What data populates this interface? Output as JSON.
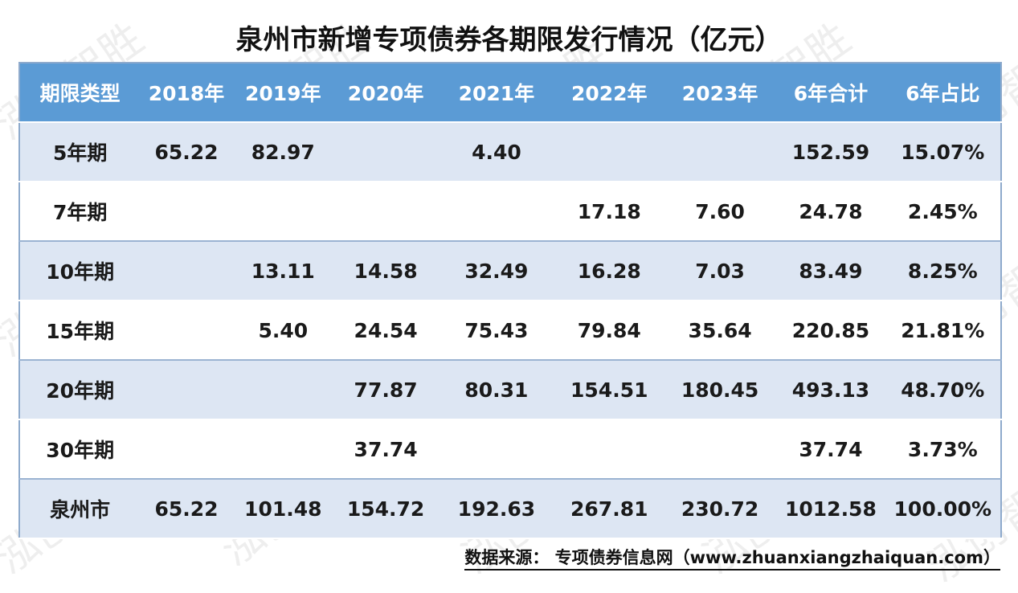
{
  "title": "泉州市新增专项债券各期限发行情况（亿元）",
  "watermark": "泓创智胜",
  "table": {
    "header": [
      "期限类型",
      "2018年",
      "2019年",
      "2020年",
      "2021年",
      "2022年",
      "2023年",
      "6年合计",
      "6年占比"
    ],
    "rows": [
      [
        "5年期",
        "65.22",
        "82.97",
        null,
        "4.40",
        null,
        null,
        "152.59",
        "15.07%"
      ],
      [
        "7年期",
        null,
        null,
        null,
        null,
        "17.18",
        "7.60",
        "24.78",
        "2.45%"
      ],
      [
        "10年期",
        null,
        "13.11",
        "14.58",
        "32.49",
        "16.28",
        "7.03",
        "83.49",
        "8.25%"
      ],
      [
        "15年期",
        null,
        "5.40",
        "24.54",
        "75.43",
        "79.84",
        "35.64",
        "220.85",
        "21.81%"
      ],
      [
        "20年期",
        null,
        null,
        "77.87",
        "80.31",
        "154.51",
        "180.45",
        "493.13",
        "48.70%"
      ],
      [
        "30年期",
        null,
        null,
        "37.74",
        null,
        null,
        null,
        "37.74",
        "3.73%"
      ],
      [
        "泉州市",
        "65.22",
        "101.48",
        "154.72",
        "192.63",
        "267.81",
        "230.72",
        "1012.58",
        "100.00%"
      ]
    ]
  },
  "source": "数据来源： 专项债券信息网（www.zhuanxiangzhaiquan.com）"
}
